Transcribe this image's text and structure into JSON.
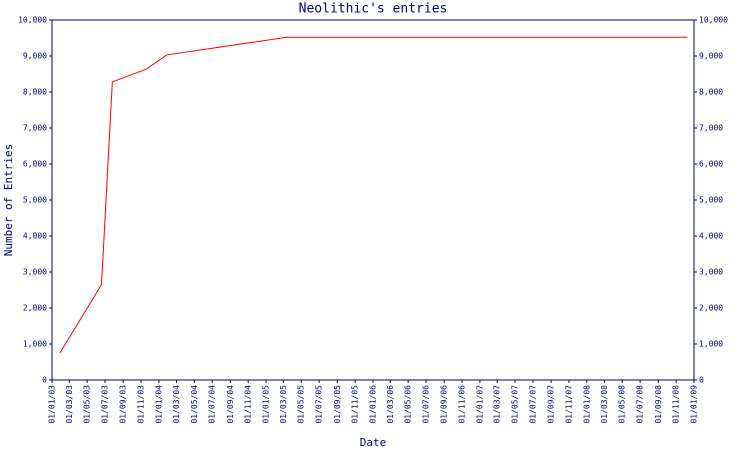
{
  "chart_data": {
    "type": "line",
    "title": "Neolithic's entries",
    "x_label": "Date",
    "y_label": "Number of Entries",
    "x": [
      "2003-01-28",
      "2003-06-19",
      "2003-07-26",
      "2003-11-20",
      "2004-01-28",
      "2005-03-12",
      "2008-12-10"
    ],
    "values": [
      750,
      2650,
      8280,
      8640,
      9030,
      9520,
      9520
    ],
    "color": "#ff0000",
    "axis_color": "#000080",
    "xlim": [
      "2003-01-01",
      "2009-01-01"
    ],
    "xticks": [
      {
        "value": "2003-01-01",
        "label": "01/01/03"
      },
      {
        "value": "2003-03-01",
        "label": "01/03/03"
      },
      {
        "value": "2003-05-01",
        "label": "01/05/03"
      },
      {
        "value": "2003-07-01",
        "label": "01/07/03"
      },
      {
        "value": "2003-09-01",
        "label": "01/09/03"
      },
      {
        "value": "2003-11-01",
        "label": "01/11/03"
      },
      {
        "value": "2004-01-01",
        "label": "01/01/04"
      },
      {
        "value": "2004-03-01",
        "label": "01/03/04"
      },
      {
        "value": "2004-05-01",
        "label": "01/05/04"
      },
      {
        "value": "2004-07-01",
        "label": "01/07/04"
      },
      {
        "value": "2004-09-01",
        "label": "01/09/04"
      },
      {
        "value": "2004-11-01",
        "label": "01/11/04"
      },
      {
        "value": "2005-01-01",
        "label": "01/01/05"
      },
      {
        "value": "2005-03-01",
        "label": "01/03/05"
      },
      {
        "value": "2005-05-01",
        "label": "01/05/05"
      },
      {
        "value": "2005-07-01",
        "label": "01/07/05"
      },
      {
        "value": "2005-09-01",
        "label": "01/09/05"
      },
      {
        "value": "2005-11-01",
        "label": "01/11/05"
      },
      {
        "value": "2006-01-01",
        "label": "01/01/06"
      },
      {
        "value": "2006-03-01",
        "label": "01/03/06"
      },
      {
        "value": "2006-05-01",
        "label": "01/05/06"
      },
      {
        "value": "2006-07-01",
        "label": "01/07/06"
      },
      {
        "value": "2006-09-01",
        "label": "01/09/06"
      },
      {
        "value": "2006-11-01",
        "label": "01/11/06"
      },
      {
        "value": "2007-01-01",
        "label": "01/01/07"
      },
      {
        "value": "2007-03-01",
        "label": "01/03/07"
      },
      {
        "value": "2007-05-01",
        "label": "01/05/07"
      },
      {
        "value": "2007-07-01",
        "label": "01/07/07"
      },
      {
        "value": "2007-09-01",
        "label": "01/09/07"
      },
      {
        "value": "2007-11-01",
        "label": "01/11/07"
      },
      {
        "value": "2008-01-01",
        "label": "01/01/08"
      },
      {
        "value": "2008-03-01",
        "label": "01/03/08"
      },
      {
        "value": "2008-05-01",
        "label": "01/05/08"
      },
      {
        "value": "2008-07-01",
        "label": "01/07/08"
      },
      {
        "value": "2008-09-01",
        "label": "01/09/08"
      },
      {
        "value": "2008-11-01",
        "label": "01/11/08"
      },
      {
        "value": "2009-01-01",
        "label": "01/01/09"
      }
    ],
    "ylim": [
      0,
      10000
    ],
    "yticks": [
      0,
      {
        "value": 1000,
        "label": "1,000"
      },
      {
        "value": 2000,
        "label": "2,000"
      },
      {
        "value": 3000,
        "label": "3,000"
      },
      {
        "value": 4000,
        "label": "4,000"
      },
      {
        "value": 5000,
        "label": "5,000"
      },
      {
        "value": 6000,
        "label": "6,000"
      },
      {
        "value": 7000,
        "label": "7,000"
      },
      {
        "value": 8000,
        "label": "8,000"
      },
      {
        "value": 9000,
        "label": "9,000"
      },
      {
        "value": 10000,
        "label": "10,000"
      }
    ],
    "y2lim": [
      0,
      10000
    ],
    "y2ticks": [
      0,
      {
        "value": 1000,
        "label": "1,000"
      },
      {
        "value": 2000,
        "label": "2,000"
      },
      {
        "value": 3000,
        "label": "3,000"
      },
      {
        "value": 4000,
        "label": "4,000"
      },
      {
        "value": 5000,
        "label": "5,000"
      },
      {
        "value": 6000,
        "label": "6,000"
      },
      {
        "value": 7000,
        "label": "7,000"
      },
      {
        "value": 8000,
        "label": "8,000"
      },
      {
        "value": 9000,
        "label": "9,000"
      },
      {
        "value": 10000,
        "label": "10,000"
      }
    ]
  }
}
